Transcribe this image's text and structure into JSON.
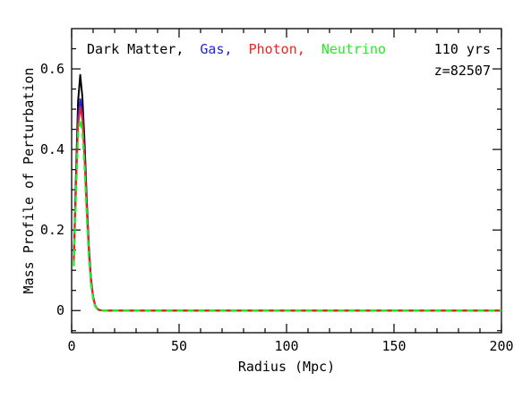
{
  "chart_data": {
    "type": "line",
    "xlabel": "Radius (Mpc)",
    "ylabel": "Mass Profile of Perturbation",
    "xlim": [
      0,
      200
    ],
    "ylim": [
      -0.055,
      0.7
    ],
    "x_ticks": [
      0,
      50,
      100,
      150,
      200
    ],
    "x_tick_labels": [
      "0",
      "50",
      "100",
      "150",
      "200"
    ],
    "y_ticks": [
      0,
      0.2,
      0.4,
      0.6
    ],
    "y_tick_labels": [
      "0",
      "0.2",
      "0.4",
      "0.6"
    ],
    "legend_position": "top-left",
    "legend": [
      {
        "label": "Dark Matter,",
        "color": "#000000"
      },
      {
        "label": "Gas,",
        "color": "#2222dd"
      },
      {
        "label": "Photon,",
        "color": "#ee2222"
      },
      {
        "label": "Neutrino",
        "color": "#22ee22"
      }
    ],
    "annotations": [
      "110 yrs",
      "z=82507"
    ],
    "grid": false,
    "series": [
      {
        "name": "Dark Matter",
        "color": "#000000",
        "dash": "solid",
        "x": [
          1,
          2,
          3,
          4,
          5,
          6,
          7,
          8,
          9,
          10,
          11,
          12,
          13,
          15,
          20,
          50,
          100,
          150,
          200
        ],
        "y": [
          0.13,
          0.33,
          0.52,
          0.585,
          0.53,
          0.42,
          0.28,
          0.16,
          0.08,
          0.035,
          0.012,
          0.004,
          0.001,
          0,
          0,
          0,
          0,
          0,
          0
        ]
      },
      {
        "name": "Gas",
        "color": "#2222dd",
        "dash": "solid",
        "x": [
          1,
          2,
          3,
          4,
          5,
          6,
          7,
          8,
          9,
          10,
          11,
          12,
          13,
          15,
          20,
          50,
          100,
          150,
          200
        ],
        "y": [
          0.12,
          0.31,
          0.48,
          0.525,
          0.49,
          0.39,
          0.26,
          0.15,
          0.075,
          0.033,
          0.011,
          0.004,
          0.001,
          0,
          0,
          0,
          0,
          0,
          0
        ]
      },
      {
        "name": "Photon",
        "color": "#ee2222",
        "dash": "solid",
        "x": [
          1,
          2,
          3,
          4,
          5,
          6,
          7,
          8,
          9,
          10,
          11,
          12,
          13,
          15,
          20,
          50,
          100,
          150,
          200
        ],
        "y": [
          0.12,
          0.3,
          0.46,
          0.505,
          0.475,
          0.38,
          0.255,
          0.145,
          0.072,
          0.032,
          0.011,
          0.004,
          0.001,
          0,
          0,
          0,
          0,
          0,
          0
        ]
      },
      {
        "name": "Neutrino",
        "color": "#22ee22",
        "dash": "dashed",
        "x": [
          1,
          2,
          3,
          4,
          5,
          6,
          7,
          8,
          9,
          10,
          11,
          12,
          13,
          15,
          20,
          50,
          100,
          150,
          200
        ],
        "y": [
          0.11,
          0.29,
          0.44,
          0.475,
          0.445,
          0.36,
          0.24,
          0.135,
          0.066,
          0.029,
          0.01,
          0.003,
          0.001,
          0,
          0,
          0,
          0,
          0,
          0
        ]
      }
    ]
  }
}
